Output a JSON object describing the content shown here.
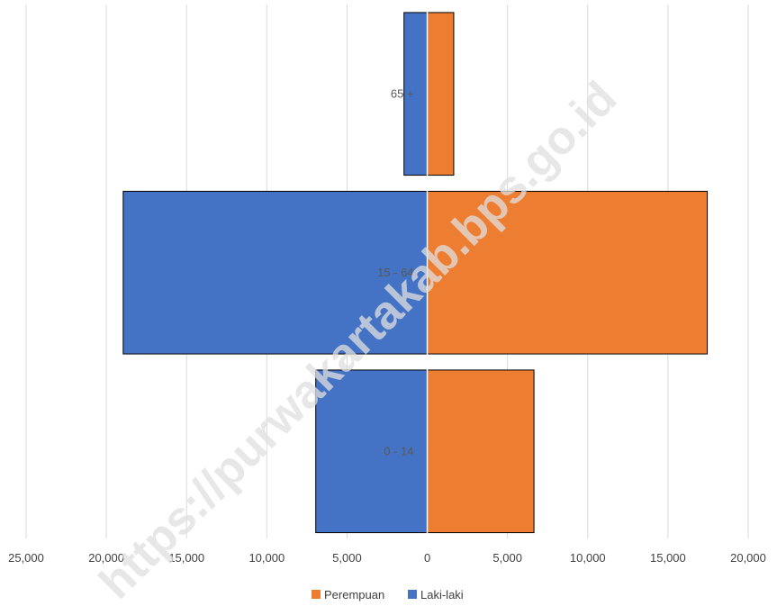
{
  "chart_data": {
    "type": "bar",
    "orientation": "horizontal",
    "categories": [
      "65 +",
      "15 - 64",
      "0 - 14"
    ],
    "series": [
      {
        "name": "Perempuan",
        "color": "#ED7D31",
        "values": [
          1650,
          17450,
          6650
        ]
      },
      {
        "name": "Laki-laki",
        "color": "#4472C4",
        "values": [
          -1450,
          -18950,
          -6950
        ]
      }
    ],
    "xlim": [
      -25000,
      20000
    ],
    "xticks": [
      -25000,
      -20000,
      -15000,
      -10000,
      -5000,
      0,
      5000,
      10000,
      15000,
      20000
    ],
    "xtick_labels": [
      "25,000",
      "20,000",
      "15,000",
      "10,000",
      "5,000",
      "0",
      "5,000",
      "10,000",
      "15,000",
      "20,000"
    ],
    "grid": true,
    "legend_position": "bottom",
    "legend": [
      "Perempuan",
      "Laki-laki"
    ]
  },
  "watermark": "https://purwakartakab.bps.go.id"
}
